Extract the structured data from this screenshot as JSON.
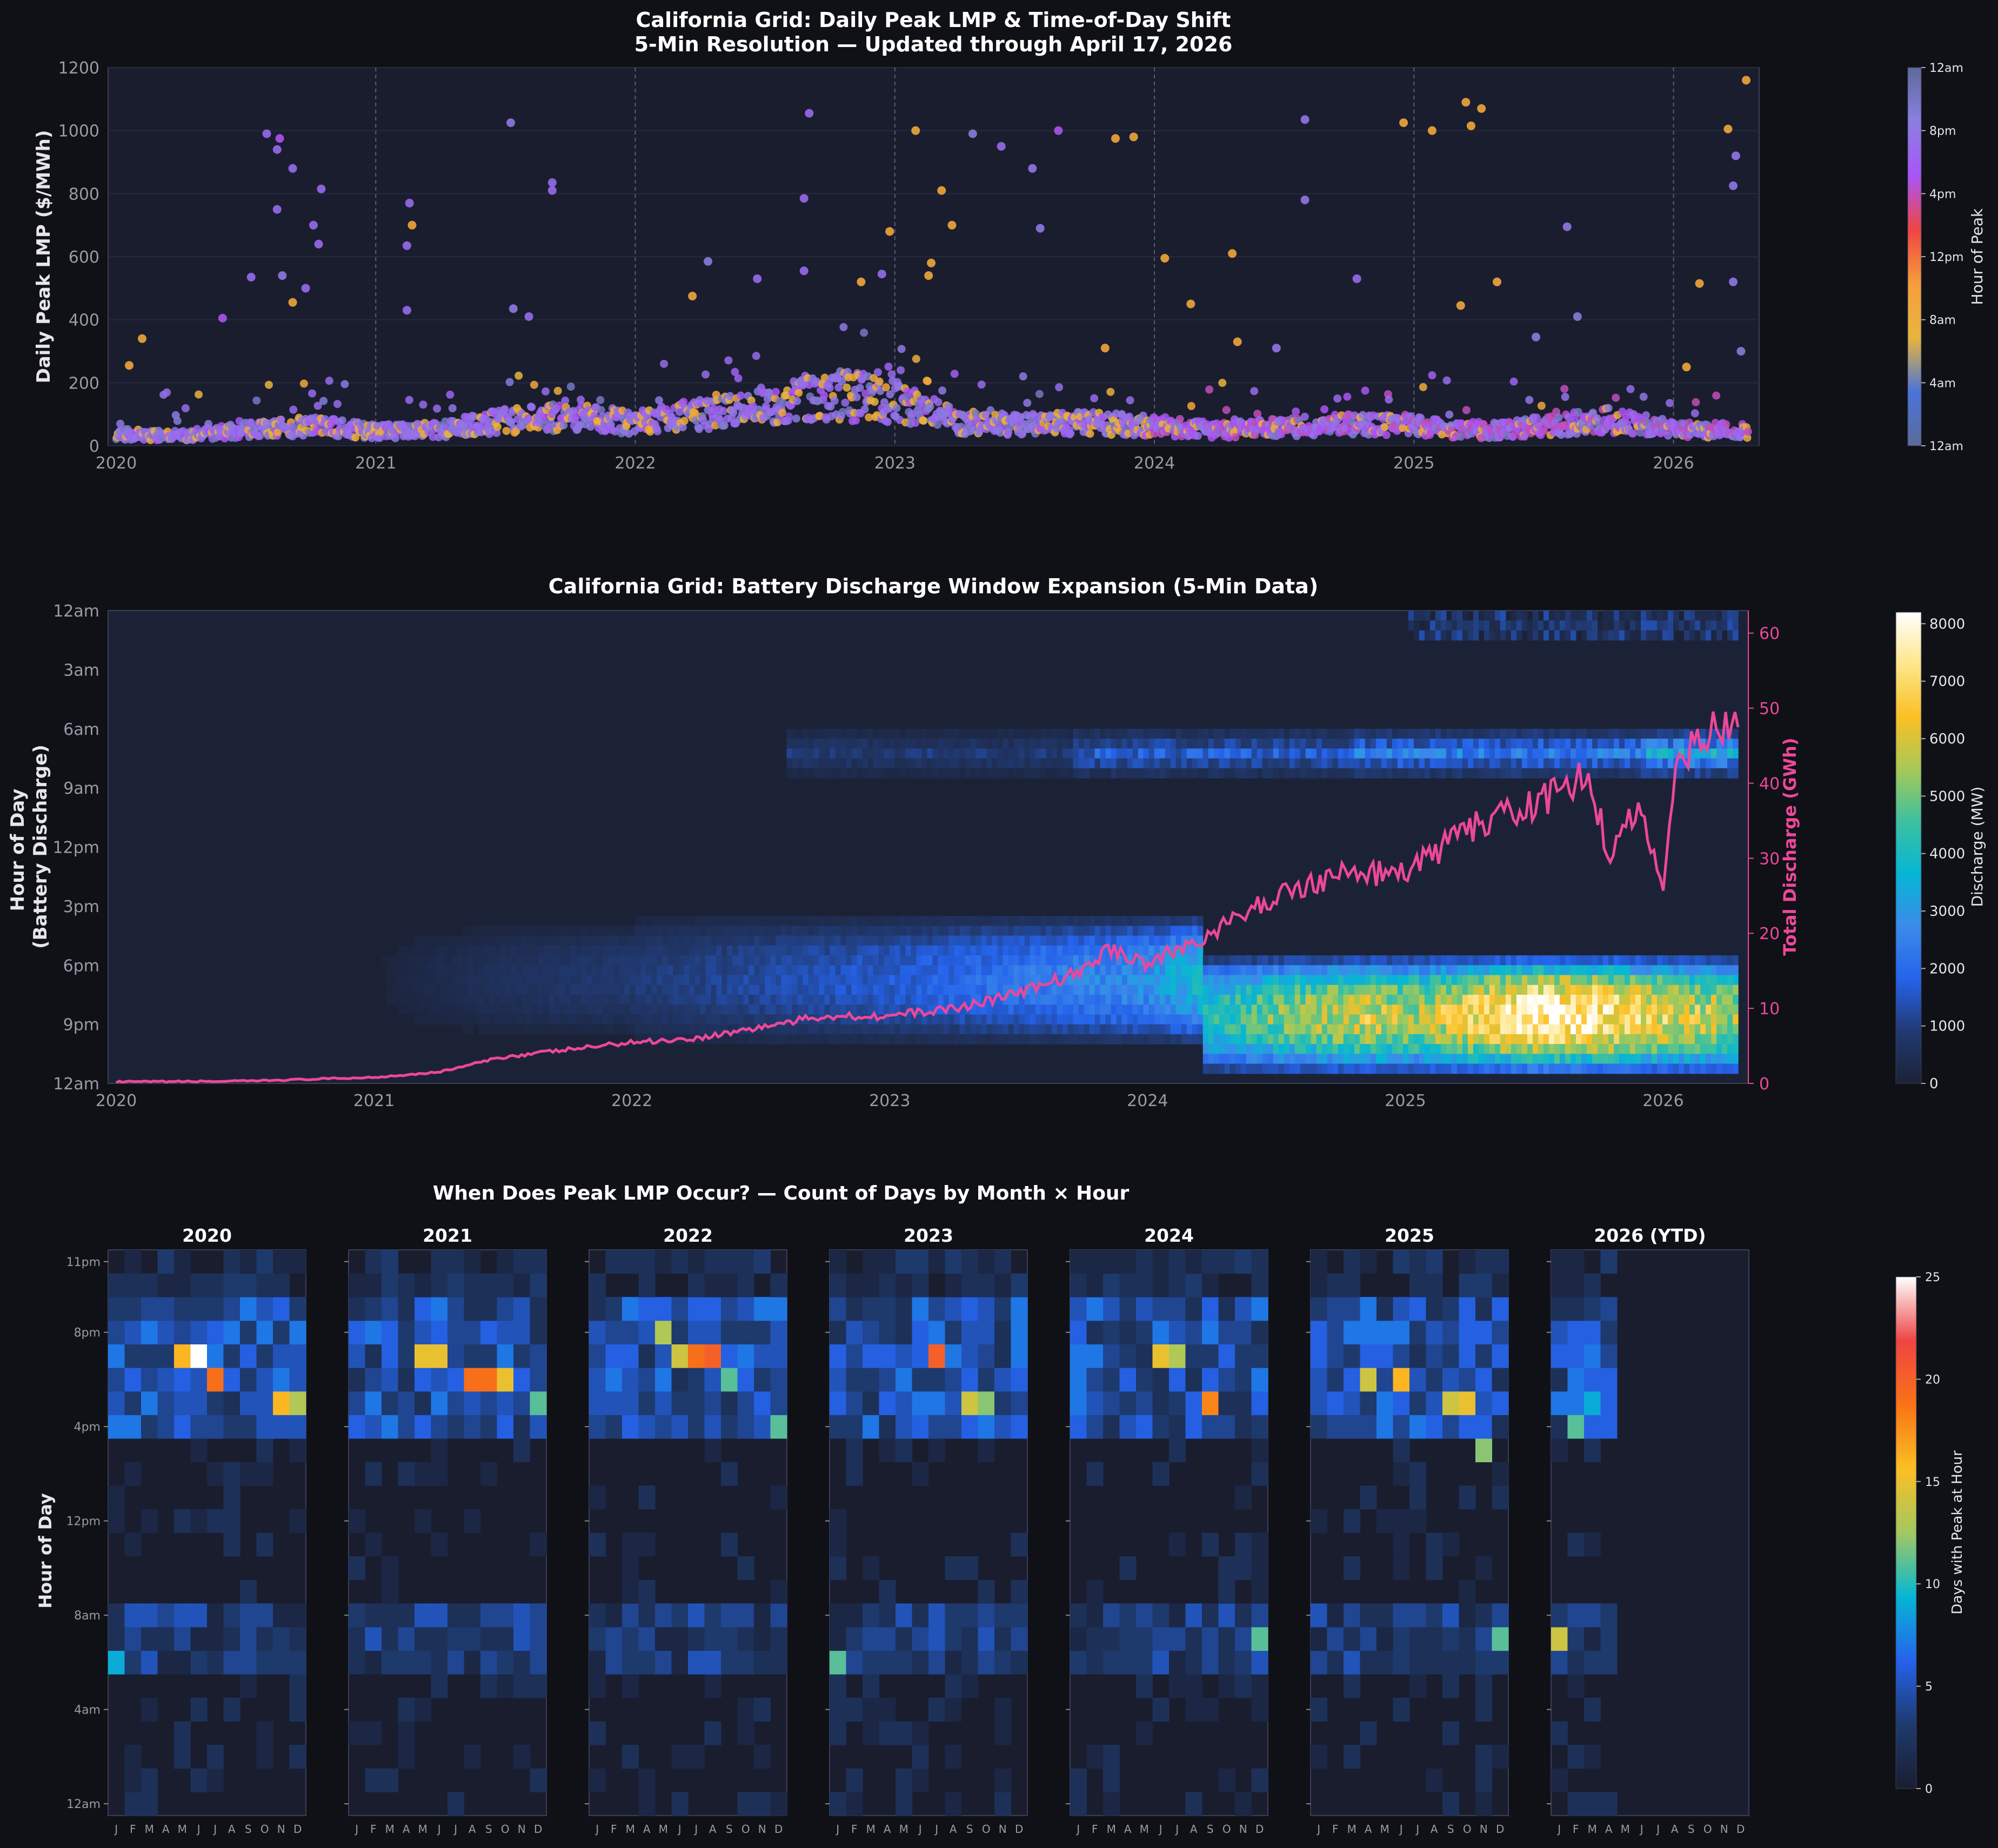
{
  "colors": {
    "figure_bg": "#0f1116",
    "axes_bg": "#1a1d2e",
    "text": "#e6e6ea",
    "tick_text": "#9a9aa6",
    "discharge_line": "#ec4899"
  },
  "chart_data": [
    {
      "id": "lmp",
      "type": "scatter",
      "title": "California Grid: Daily Peak LMP & Time-of-Day Shift",
      "subtitle": "5-Min Resolution — Updated through April 17, 2026",
      "ylabel": "Daily Peak LMP ($/MWh)",
      "xlim": [
        "2020-01-01",
        "2026-04-20"
      ],
      "ylim": [
        0,
        1200
      ],
      "x_ticks": [
        "2020",
        "2021",
        "2022",
        "2023",
        "2024",
        "2025",
        "2026"
      ],
      "y_ticks": [
        0,
        200,
        400,
        600,
        800,
        1000,
        1200
      ],
      "year_dividers": true,
      "colorbar": {
        "label": "Hour of Peak",
        "ticks": [
          "12am",
          "4am",
          "8am",
          "12pm",
          "4pm",
          "8pm",
          "12am"
        ],
        "stops": [
          "#5b6b9a",
          "#4a73d9",
          "#e8b53c",
          "#f59e3b",
          "#ef4444",
          "#a855f7",
          "#8b7fe0",
          "#5b6b9a"
        ]
      },
      "baseline_by_quarter": [
        {
          "year": 2020.0,
          "value": 40
        },
        {
          "year": 2020.25,
          "value": 35
        },
        {
          "year": 2020.5,
          "value": 55
        },
        {
          "year": 2020.75,
          "value": 70
        },
        {
          "year": 2021.0,
          "value": 50
        },
        {
          "year": 2021.25,
          "value": 55
        },
        {
          "year": 2021.5,
          "value": 90
        },
        {
          "year": 2021.75,
          "value": 100
        },
        {
          "year": 2022.0,
          "value": 80
        },
        {
          "year": 2022.25,
          "value": 110
        },
        {
          "year": 2022.5,
          "value": 140
        },
        {
          "year": 2022.75,
          "value": 180
        },
        {
          "year": 2023.0,
          "value": 160
        },
        {
          "year": 2023.25,
          "value": 80
        },
        {
          "year": 2023.5,
          "value": 75
        },
        {
          "year": 2023.75,
          "value": 80
        },
        {
          "year": 2024.0,
          "value": 70
        },
        {
          "year": 2024.25,
          "value": 55
        },
        {
          "year": 2024.5,
          "value": 65
        },
        {
          "year": 2024.75,
          "value": 75
        },
        {
          "year": 2025.0,
          "value": 70
        },
        {
          "year": 2025.25,
          "value": 50
        },
        {
          "year": 2025.5,
          "value": 70
        },
        {
          "year": 2025.75,
          "value": 90
        },
        {
          "year": 2026.0,
          "value": 60
        },
        {
          "year": 2026.29,
          "value": 50
        }
      ],
      "spikes": [
        {
          "year": 2020.58,
          "value": 990,
          "hour": 19
        },
        {
          "year": 2020.63,
          "value": 975,
          "hour": 17
        },
        {
          "year": 2020.62,
          "value": 940,
          "hour": 19
        },
        {
          "year": 2020.68,
          "value": 880,
          "hour": 19
        },
        {
          "year": 2020.79,
          "value": 815,
          "hour": 19
        },
        {
          "year": 2020.62,
          "value": 750,
          "hour": 19
        },
        {
          "year": 2020.76,
          "value": 700,
          "hour": 19
        },
        {
          "year": 2020.78,
          "value": 640,
          "hour": 19
        },
        {
          "year": 2020.64,
          "value": 540,
          "hour": 20
        },
        {
          "year": 2020.52,
          "value": 535,
          "hour": 19
        },
        {
          "year": 2020.73,
          "value": 500,
          "hour": 19
        },
        {
          "year": 2020.68,
          "value": 455,
          "hour": 9
        },
        {
          "year": 2020.41,
          "value": 405,
          "hour": 17
        },
        {
          "year": 2020.1,
          "value": 340,
          "hour": 9
        },
        {
          "year": 2020.05,
          "value": 255,
          "hour": 9
        },
        {
          "year": 2021.52,
          "value": 1025,
          "hour": 20
        },
        {
          "year": 2021.13,
          "value": 770,
          "hour": 19
        },
        {
          "year": 2021.14,
          "value": 700,
          "hour": 9
        },
        {
          "year": 2021.12,
          "value": 635,
          "hour": 19
        },
        {
          "year": 2021.68,
          "value": 835,
          "hour": 19
        },
        {
          "year": 2021.68,
          "value": 810,
          "hour": 19
        },
        {
          "year": 2021.12,
          "value": 430,
          "hour": 19
        },
        {
          "year": 2021.59,
          "value": 410,
          "hour": 19
        },
        {
          "year": 2021.53,
          "value": 435,
          "hour": 20
        },
        {
          "year": 2022.67,
          "value": 1055,
          "hour": 19
        },
        {
          "year": 2022.65,
          "value": 785,
          "hour": 19
        },
        {
          "year": 2022.28,
          "value": 585,
          "hour": 21
        },
        {
          "year": 2022.47,
          "value": 530,
          "hour": 19
        },
        {
          "year": 2022.22,
          "value": 475,
          "hour": 9
        },
        {
          "year": 2022.65,
          "value": 555,
          "hour": 19
        },
        {
          "year": 2022.87,
          "value": 520,
          "hour": 9
        },
        {
          "year": 2022.95,
          "value": 545,
          "hour": 19
        },
        {
          "year": 2022.98,
          "value": 680,
          "hour": 9
        },
        {
          "year": 2023.08,
          "value": 1000,
          "hour": 9
        },
        {
          "year": 2023.18,
          "value": 810,
          "hour": 9
        },
        {
          "year": 2023.3,
          "value": 990,
          "hour": 21
        },
        {
          "year": 2023.41,
          "value": 950,
          "hour": 19
        },
        {
          "year": 2023.63,
          "value": 1000,
          "hour": 17
        },
        {
          "year": 2023.53,
          "value": 880,
          "hour": 20
        },
        {
          "year": 2023.22,
          "value": 700,
          "hour": 9
        },
        {
          "year": 2023.56,
          "value": 690,
          "hour": 20
        },
        {
          "year": 2023.14,
          "value": 580,
          "hour": 9
        },
        {
          "year": 2023.13,
          "value": 540,
          "hour": 9
        },
        {
          "year": 2023.85,
          "value": 975,
          "hour": 9
        },
        {
          "year": 2023.92,
          "value": 980,
          "hour": 9
        },
        {
          "year": 2023.81,
          "value": 310,
          "hour": 9
        },
        {
          "year": 2024.04,
          "value": 595,
          "hour": 9
        },
        {
          "year": 2024.14,
          "value": 450,
          "hour": 9
        },
        {
          "year": 2024.58,
          "value": 1035,
          "hour": 20
        },
        {
          "year": 2024.58,
          "value": 780,
          "hour": 20
        },
        {
          "year": 2024.3,
          "value": 610,
          "hour": 9
        },
        {
          "year": 2024.78,
          "value": 530,
          "hour": 19
        },
        {
          "year": 2024.32,
          "value": 330,
          "hour": 9
        },
        {
          "year": 2024.47,
          "value": 310,
          "hour": 20
        },
        {
          "year": 2024.96,
          "value": 1025,
          "hour": 9
        },
        {
          "year": 2025.07,
          "value": 1000,
          "hour": 9
        },
        {
          "year": 2025.2,
          "value": 1090,
          "hour": 9
        },
        {
          "year": 2025.22,
          "value": 1015,
          "hour": 9
        },
        {
          "year": 2025.26,
          "value": 1070,
          "hour": 9
        },
        {
          "year": 2025.32,
          "value": 520,
          "hour": 9
        },
        {
          "year": 2025.18,
          "value": 445,
          "hour": 9
        },
        {
          "year": 2025.59,
          "value": 695,
          "hour": 20
        },
        {
          "year": 2025.63,
          "value": 410,
          "hour": 21
        },
        {
          "year": 2025.47,
          "value": 345,
          "hour": 20
        },
        {
          "year": 2026.28,
          "value": 1160,
          "hour": 9
        },
        {
          "year": 2026.21,
          "value": 1005,
          "hour": 9
        },
        {
          "year": 2026.24,
          "value": 920,
          "hour": 20
        },
        {
          "year": 2026.23,
          "value": 825,
          "hour": 20
        },
        {
          "year": 2026.23,
          "value": 520,
          "hour": 20
        },
        {
          "year": 2026.1,
          "value": 515,
          "hour": 9
        },
        {
          "year": 2026.26,
          "value": 300,
          "hour": 21
        },
        {
          "year": 2026.05,
          "value": 250,
          "hour": 9
        }
      ]
    },
    {
      "id": "battery",
      "type": "heatmap",
      "title": "California Grid: Battery Discharge Window Expansion (5-Min Data)",
      "ylabel": "Hour of Day\n(Battery Discharge)",
      "ylabel_right": "Total Discharge (GWh)",
      "xlim": [
        "2020-01-01",
        "2026-04-20"
      ],
      "x_ticks": [
        "2020",
        "2021",
        "2022",
        "2023",
        "2024",
        "2025",
        "2026"
      ],
      "y_ticks": [
        "12am",
        "3am",
        "6am",
        "9am",
        "12pm",
        "3pm",
        "6pm",
        "9pm",
        "12am"
      ],
      "right_ticks": [
        0,
        10,
        20,
        30,
        40,
        50,
        60
      ],
      "right_ylim": [
        0,
        63
      ],
      "colorbar": {
        "label": "Discharge (MW)",
        "ticks": [
          0,
          1000,
          2000,
          3000,
          4000,
          5000,
          6000,
          7000,
          8000
        ],
        "max": 8200,
        "stops": [
          "#1c2236",
          "#213a72",
          "#2563eb",
          "#3b8bea",
          "#06b6d4",
          "#3cc0a0",
          "#a7c957",
          "#fbbf24",
          "#fde68a",
          "#ffffff"
        ]
      },
      "evening_intensity_mw": [
        {
          "year": 2020.0,
          "value": 0
        },
        {
          "year": 2021.0,
          "value": 100
        },
        {
          "year": 2021.5,
          "value": 600
        },
        {
          "year": 2022.0,
          "value": 900
        },
        {
          "year": 2022.5,
          "value": 1300
        },
        {
          "year": 2023.0,
          "value": 1700
        },
        {
          "year": 2023.5,
          "value": 2300
        },
        {
          "year": 2024.0,
          "value": 2900
        },
        {
          "year": 2024.25,
          "value": 4200
        },
        {
          "year": 2024.5,
          "value": 5200
        },
        {
          "year": 2024.85,
          "value": 6200
        },
        {
          "year": 2025.0,
          "value": 5600
        },
        {
          "year": 2025.25,
          "value": 6800
        },
        {
          "year": 2025.5,
          "value": 8000
        },
        {
          "year": 2025.75,
          "value": 7600
        },
        {
          "year": 2025.9,
          "value": 6800
        },
        {
          "year": 2026.29,
          "value": 5600
        }
      ],
      "total_discharge_gwh": [
        {
          "year": 2020.0,
          "value": 0.2
        },
        {
          "year": 2020.5,
          "value": 0.3
        },
        {
          "year": 2021.0,
          "value": 0.8
        },
        {
          "year": 2021.25,
          "value": 1.5
        },
        {
          "year": 2021.5,
          "value": 3.5
        },
        {
          "year": 2021.75,
          "value": 4.5
        },
        {
          "year": 2022.0,
          "value": 5.5
        },
        {
          "year": 2022.25,
          "value": 6.0
        },
        {
          "year": 2022.5,
          "value": 7.5
        },
        {
          "year": 2022.75,
          "value": 9.0
        },
        {
          "year": 2023.0,
          "value": 9.0
        },
        {
          "year": 2023.25,
          "value": 10.0
        },
        {
          "year": 2023.5,
          "value": 12.0
        },
        {
          "year": 2023.75,
          "value": 15.0
        },
        {
          "year": 2023.85,
          "value": 18.0
        },
        {
          "year": 2024.0,
          "value": 16.0
        },
        {
          "year": 2024.25,
          "value": 20.0
        },
        {
          "year": 2024.5,
          "value": 25.0
        },
        {
          "year": 2024.75,
          "value": 28.0
        },
        {
          "year": 2025.0,
          "value": 28.0
        },
        {
          "year": 2025.25,
          "value": 34.0
        },
        {
          "year": 2025.5,
          "value": 37.0
        },
        {
          "year": 2025.7,
          "value": 41.0
        },
        {
          "year": 2025.8,
          "value": 30.0
        },
        {
          "year": 2025.9,
          "value": 37.0
        },
        {
          "year": 2026.0,
          "value": 27.0
        },
        {
          "year": 2026.05,
          "value": 42.0
        },
        {
          "year": 2026.15,
          "value": 47.0
        },
        {
          "year": 2026.29,
          "value": 48.0
        }
      ]
    },
    {
      "id": "peak_hours",
      "type": "heatmap",
      "title": "When Does Peak LMP Occur? — Count of Days by Month × Hour",
      "ylabel": "Hour of Day",
      "panels": [
        "2020",
        "2021",
        "2022",
        "2023",
        "2024",
        "2025",
        "2026 (YTD)"
      ],
      "month_labels": [
        "J",
        "F",
        "M",
        "A",
        "M",
        "J",
        "J",
        "A",
        "S",
        "O",
        "N",
        "D"
      ],
      "y_ticks": [
        "12am",
        "4am",
        "8am",
        "12pm",
        "4pm",
        "8pm",
        "11pm"
      ],
      "colorbar": {
        "label": "Days with Peak at Hour",
        "ticks": [
          0,
          5,
          10,
          15,
          20,
          25
        ],
        "max": 25,
        "stops": [
          "#1a1e30",
          "#1e3a6e",
          "#2563eb",
          "#06b6d4",
          "#a3c860",
          "#fbbf24",
          "#f97316",
          "#ef4444",
          "#ffffff"
        ]
      },
      "notable_cells": [
        {
          "panel": "2020",
          "month": 6,
          "hour": 19,
          "days": 25
        },
        {
          "panel": "2020",
          "month": 5,
          "hour": 19,
          "days": 16
        },
        {
          "panel": "2020",
          "month": 7,
          "hour": 18,
          "days": 19
        },
        {
          "panel": "2020",
          "month": 11,
          "hour": 17,
          "days": 16
        },
        {
          "panel": "2020",
          "month": 12,
          "hour": 17,
          "days": 13
        },
        {
          "panel": "2020",
          "month": 1,
          "hour": 6,
          "days": 9
        },
        {
          "panel": "2021",
          "month": 5,
          "hour": 19,
          "days": 15
        },
        {
          "panel": "2021",
          "month": 6,
          "hour": 19,
          "days": 15
        },
        {
          "panel": "2021",
          "month": 8,
          "hour": 18,
          "days": 19
        },
        {
          "panel": "2021",
          "month": 9,
          "hour": 18,
          "days": 19
        },
        {
          "panel": "2021",
          "month": 10,
          "hour": 18,
          "days": 15
        },
        {
          "panel": "2021",
          "month": 12,
          "hour": 17,
          "days": 11
        },
        {
          "panel": "2022",
          "month": 7,
          "hour": 19,
          "days": 19
        },
        {
          "panel": "2022",
          "month": 8,
          "hour": 19,
          "days": 20
        },
        {
          "panel": "2022",
          "month": 6,
          "hour": 19,
          "days": 14
        },
        {
          "panel": "2022",
          "month": 5,
          "hour": 20,
          "days": 13
        },
        {
          "panel": "2022",
          "month": 9,
          "hour": 18,
          "days": 11
        },
        {
          "panel": "2022",
          "month": 12,
          "hour": 16,
          "days": 11
        },
        {
          "panel": "2023",
          "month": 7,
          "hour": 19,
          "days": 20
        },
        {
          "panel": "2023",
          "month": 9,
          "hour": 17,
          "days": 14
        },
        {
          "panel": "2023",
          "month": 1,
          "hour": 6,
          "days": 11
        },
        {
          "panel": "2023",
          "month": 10,
          "hour": 17,
          "days": 12
        },
        {
          "panel": "2024",
          "month": 6,
          "hour": 19,
          "days": 15
        },
        {
          "panel": "2024",
          "month": 7,
          "hour": 19,
          "days": 13
        },
        {
          "panel": "2024",
          "month": 9,
          "hour": 17,
          "days": 18
        },
        {
          "panel": "2024",
          "month": 12,
          "hour": 7,
          "days": 11
        },
        {
          "panel": "2025",
          "month": 4,
          "hour": 18,
          "days": 14
        },
        {
          "panel": "2025",
          "month": 6,
          "hour": 18,
          "days": 16
        },
        {
          "panel": "2025",
          "month": 9,
          "hour": 17,
          "days": 14
        },
        {
          "panel": "2025",
          "month": 10,
          "hour": 17,
          "days": 15
        },
        {
          "panel": "2025",
          "month": 11,
          "hour": 15,
          "days": 12
        },
        {
          "panel": "2025",
          "month": 12,
          "hour": 7,
          "days": 11
        },
        {
          "panel": "2026 (YTD)",
          "month": 1,
          "hour": 7,
          "days": 14
        },
        {
          "panel": "2026 (YTD)",
          "month": 2,
          "hour": 16,
          "days": 11
        },
        {
          "panel": "2026 (YTD)",
          "month": 3,
          "hour": 17,
          "days": 9
        }
      ]
    }
  ]
}
